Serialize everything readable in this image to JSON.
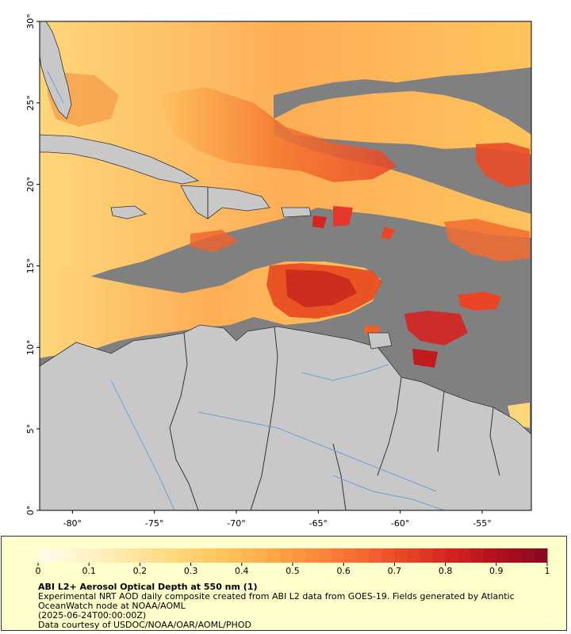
{
  "map": {
    "latitude_labels": [
      "30°",
      "25°",
      "20°",
      "15°",
      "10°",
      "5°",
      "0°"
    ],
    "longitude_labels": [
      "-80°",
      "-75°",
      "-70°",
      "-65°",
      "-60°",
      "-55°"
    ],
    "lat_range": [
      0,
      30
    ],
    "lon_range": [
      -82,
      -52
    ],
    "colors": {
      "ocean_no_data": "#808080",
      "land": "#c8c8c8",
      "rivers": "#6f9fd6",
      "borders": "#333333"
    }
  },
  "legend": {
    "tick_labels": [
      "0",
      "0.1",
      "0.2",
      "0.3",
      "0.4",
      "0.5",
      "0.6",
      "0.7",
      "0.8",
      "0.9",
      "1"
    ],
    "min": 0,
    "max": 1,
    "title": "ABI L2+ Aerosol Optical Depth at 550 nm (1)",
    "description_lines": [
      "Experimental NRT AOD daily composite created from ABI L2 data from GOES-19. Fields generated by Atlantic OceanWatch node at NOAA/AOML",
      "(2025-06-24T00:00:00Z)",
      "Data courtesy of USDOC/NOAA/OAR/AOML/PHOD"
    ],
    "colormap": [
      "#fffbe6",
      "#fff2c4",
      "#ffe59e",
      "#ffd67a",
      "#ffc35c",
      "#fda84a",
      "#fb8a3e",
      "#f66a32",
      "#e94526",
      "#d42420",
      "#b3101f",
      "#8b0a22"
    ]
  }
}
